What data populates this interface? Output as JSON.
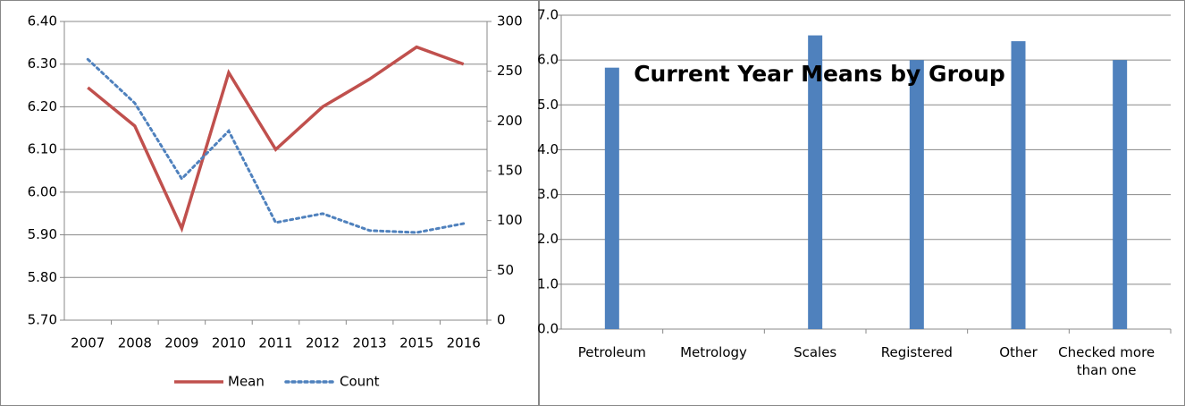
{
  "chart_data": [
    {
      "type": "line",
      "categories": [
        "2007",
        "2008",
        "2009",
        "2010",
        "2011",
        "2012",
        "2013",
        "2015",
        "2016"
      ],
      "series": [
        {
          "name": "Mean",
          "color": "#c0504d",
          "style": "solid",
          "values": [
            6.245,
            6.155,
            5.915,
            6.28,
            6.1,
            6.2,
            6.265,
            6.34,
            6.3
          ]
        },
        {
          "name": "Count",
          "color": "#4f81bd",
          "style": "dotted",
          "axis": "y2",
          "values": [
            262,
            218,
            142,
            190,
            98,
            107,
            90,
            88,
            97
          ]
        }
      ],
      "ylim": [
        5.7,
        6.4
      ],
      "yticks": [
        {
          "value": 5.7,
          "label": "5.70"
        },
        {
          "value": 5.8,
          "label": "5.80"
        },
        {
          "value": 5.9,
          "label": "5.90"
        },
        {
          "value": 6.0,
          "label": "6.00"
        },
        {
          "value": 6.1,
          "label": "6.10"
        },
        {
          "value": 6.2,
          "label": "6.20"
        },
        {
          "value": 6.3,
          "label": "6.30"
        },
        {
          "value": 6.4,
          "label": "6.40"
        }
      ],
      "y2lim": [
        0,
        300
      ],
      "y2ticks": [
        0,
        50,
        100,
        150,
        200,
        250,
        300
      ],
      "grid": true,
      "legend": "bottom"
    },
    {
      "type": "bar",
      "title": "Current Year Means by Group",
      "categories": [
        "Petroleum",
        "Metrology",
        "Scales",
        "Registered",
        "Other",
        "Checked more than one"
      ],
      "values": [
        5.83,
        null,
        6.55,
        6.0,
        6.42,
        6.0
      ],
      "color": "#4f81bd",
      "ylim": [
        0,
        7
      ],
      "yticks": [
        {
          "value": 0,
          "label": "0.0"
        },
        {
          "value": 1,
          "label": "1.0"
        },
        {
          "value": 2,
          "label": "2.0"
        },
        {
          "value": 3,
          "label": "3.0"
        },
        {
          "value": 4,
          "label": "4.0"
        },
        {
          "value": 5,
          "label": "5.0"
        },
        {
          "value": 6,
          "label": "6.0"
        },
        {
          "value": 7,
          "label": "7.0"
        }
      ],
      "grid": true
    }
  ]
}
